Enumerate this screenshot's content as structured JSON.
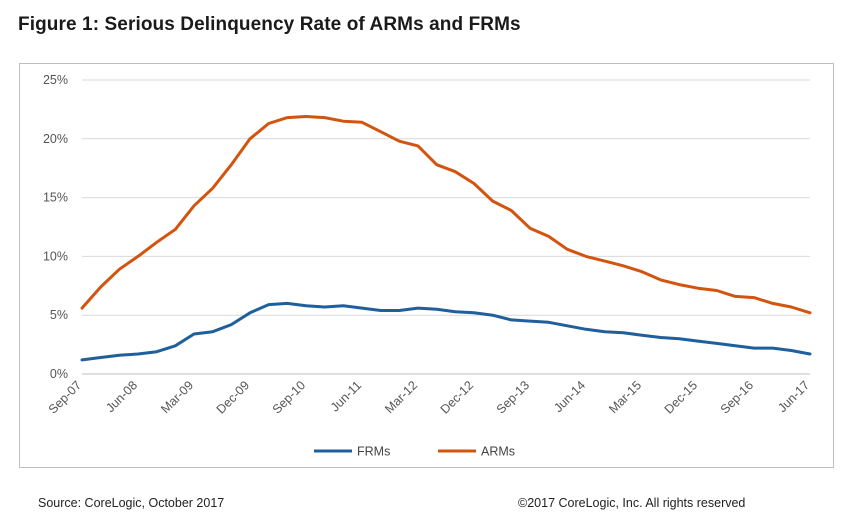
{
  "figure": {
    "title": "Figure 1: Serious Delinquency Rate of ARMs and FRMs",
    "source": "Source: CoreLogic, October 2017",
    "copyright": "©2017 CoreLogic, Inc. All rights reserved"
  },
  "chart_data": {
    "type": "line",
    "title": "Figure 1: Serious Delinquency Rate of ARMs and FRMs",
    "xlabel": "",
    "ylabel": "",
    "ylim": [
      0,
      25
    ],
    "y_ticks": [
      "0%",
      "5%",
      "10%",
      "15%",
      "20%",
      "25%"
    ],
    "y_tick_values": [
      0,
      5,
      10,
      15,
      20,
      25
    ],
    "x_tick_labels": [
      "Sep-07",
      "Jun-08",
      "Mar-09",
      "Dec-09",
      "Sep-10",
      "Jun-11",
      "Mar-12",
      "Dec-12",
      "Sep-13",
      "Jun-14",
      "Mar-15",
      "Dec-15",
      "Sep-16",
      "Jun-17"
    ],
    "x_range": [
      "Sep-07",
      "Jun-17"
    ],
    "grid": "horizontal",
    "legend_position": "bottom",
    "series": [
      {
        "name": "FRMs",
        "color": "#1f5f9c",
        "points": [
          [
            "Sep-07",
            1.2
          ],
          [
            "Dec-07",
            1.4
          ],
          [
            "Mar-08",
            1.6
          ],
          [
            "Jun-08",
            1.7
          ],
          [
            "Sep-08",
            1.9
          ],
          [
            "Dec-08",
            2.4
          ],
          [
            "Mar-09",
            3.4
          ],
          [
            "Jun-09",
            3.6
          ],
          [
            "Sep-09",
            4.2
          ],
          [
            "Dec-09",
            5.2
          ],
          [
            "Mar-10",
            5.9
          ],
          [
            "Jun-10",
            6.0
          ],
          [
            "Sep-10",
            5.8
          ],
          [
            "Dec-10",
            5.7
          ],
          [
            "Mar-11",
            5.8
          ],
          [
            "Jun-11",
            5.6
          ],
          [
            "Sep-11",
            5.4
          ],
          [
            "Dec-11",
            5.4
          ],
          [
            "Mar-12",
            5.6
          ],
          [
            "Jun-12",
            5.5
          ],
          [
            "Sep-12",
            5.3
          ],
          [
            "Dec-12",
            5.2
          ],
          [
            "Mar-13",
            5.0
          ],
          [
            "Jun-13",
            4.6
          ],
          [
            "Sep-13",
            4.5
          ],
          [
            "Dec-13",
            4.4
          ],
          [
            "Mar-14",
            4.1
          ],
          [
            "Jun-14",
            3.8
          ],
          [
            "Sep-14",
            3.6
          ],
          [
            "Dec-14",
            3.5
          ],
          [
            "Mar-15",
            3.3
          ],
          [
            "Jun-15",
            3.1
          ],
          [
            "Sep-15",
            3.0
          ],
          [
            "Dec-15",
            2.8
          ],
          [
            "Mar-16",
            2.6
          ],
          [
            "Jun-16",
            2.4
          ],
          [
            "Sep-16",
            2.2
          ],
          [
            "Dec-16",
            2.2
          ],
          [
            "Mar-17",
            2.0
          ],
          [
            "Jun-17",
            1.7
          ]
        ]
      },
      {
        "name": "ARMs",
        "color": "#d2540f",
        "points": [
          [
            "Sep-07",
            5.6
          ],
          [
            "Dec-07",
            7.4
          ],
          [
            "Mar-08",
            8.9
          ],
          [
            "Jun-08",
            10.0
          ],
          [
            "Sep-08",
            11.2
          ],
          [
            "Dec-08",
            12.3
          ],
          [
            "Mar-09",
            14.3
          ],
          [
            "Jun-09",
            15.8
          ],
          [
            "Sep-09",
            17.8
          ],
          [
            "Dec-09",
            20.0
          ],
          [
            "Mar-10",
            21.3
          ],
          [
            "Jun-10",
            21.8
          ],
          [
            "Sep-10",
            21.9
          ],
          [
            "Dec-10",
            21.8
          ],
          [
            "Mar-11",
            21.5
          ],
          [
            "Jun-11",
            21.4
          ],
          [
            "Sep-11",
            20.6
          ],
          [
            "Dec-11",
            19.8
          ],
          [
            "Mar-12",
            19.4
          ],
          [
            "Jun-12",
            17.8
          ],
          [
            "Sep-12",
            17.2
          ],
          [
            "Dec-12",
            16.2
          ],
          [
            "Mar-13",
            14.7
          ],
          [
            "Jun-13",
            13.9
          ],
          [
            "Sep-13",
            12.4
          ],
          [
            "Dec-13",
            11.7
          ],
          [
            "Mar-14",
            10.6
          ],
          [
            "Jun-14",
            10.0
          ],
          [
            "Sep-14",
            9.6
          ],
          [
            "Dec-14",
            9.2
          ],
          [
            "Mar-15",
            8.7
          ],
          [
            "Jun-15",
            8.0
          ],
          [
            "Sep-15",
            7.6
          ],
          [
            "Dec-15",
            7.3
          ],
          [
            "Mar-16",
            7.1
          ],
          [
            "Jun-16",
            6.6
          ],
          [
            "Sep-16",
            6.5
          ],
          [
            "Dec-16",
            6.0
          ],
          [
            "Mar-17",
            5.7
          ],
          [
            "Jun-17",
            5.2
          ]
        ]
      }
    ]
  }
}
